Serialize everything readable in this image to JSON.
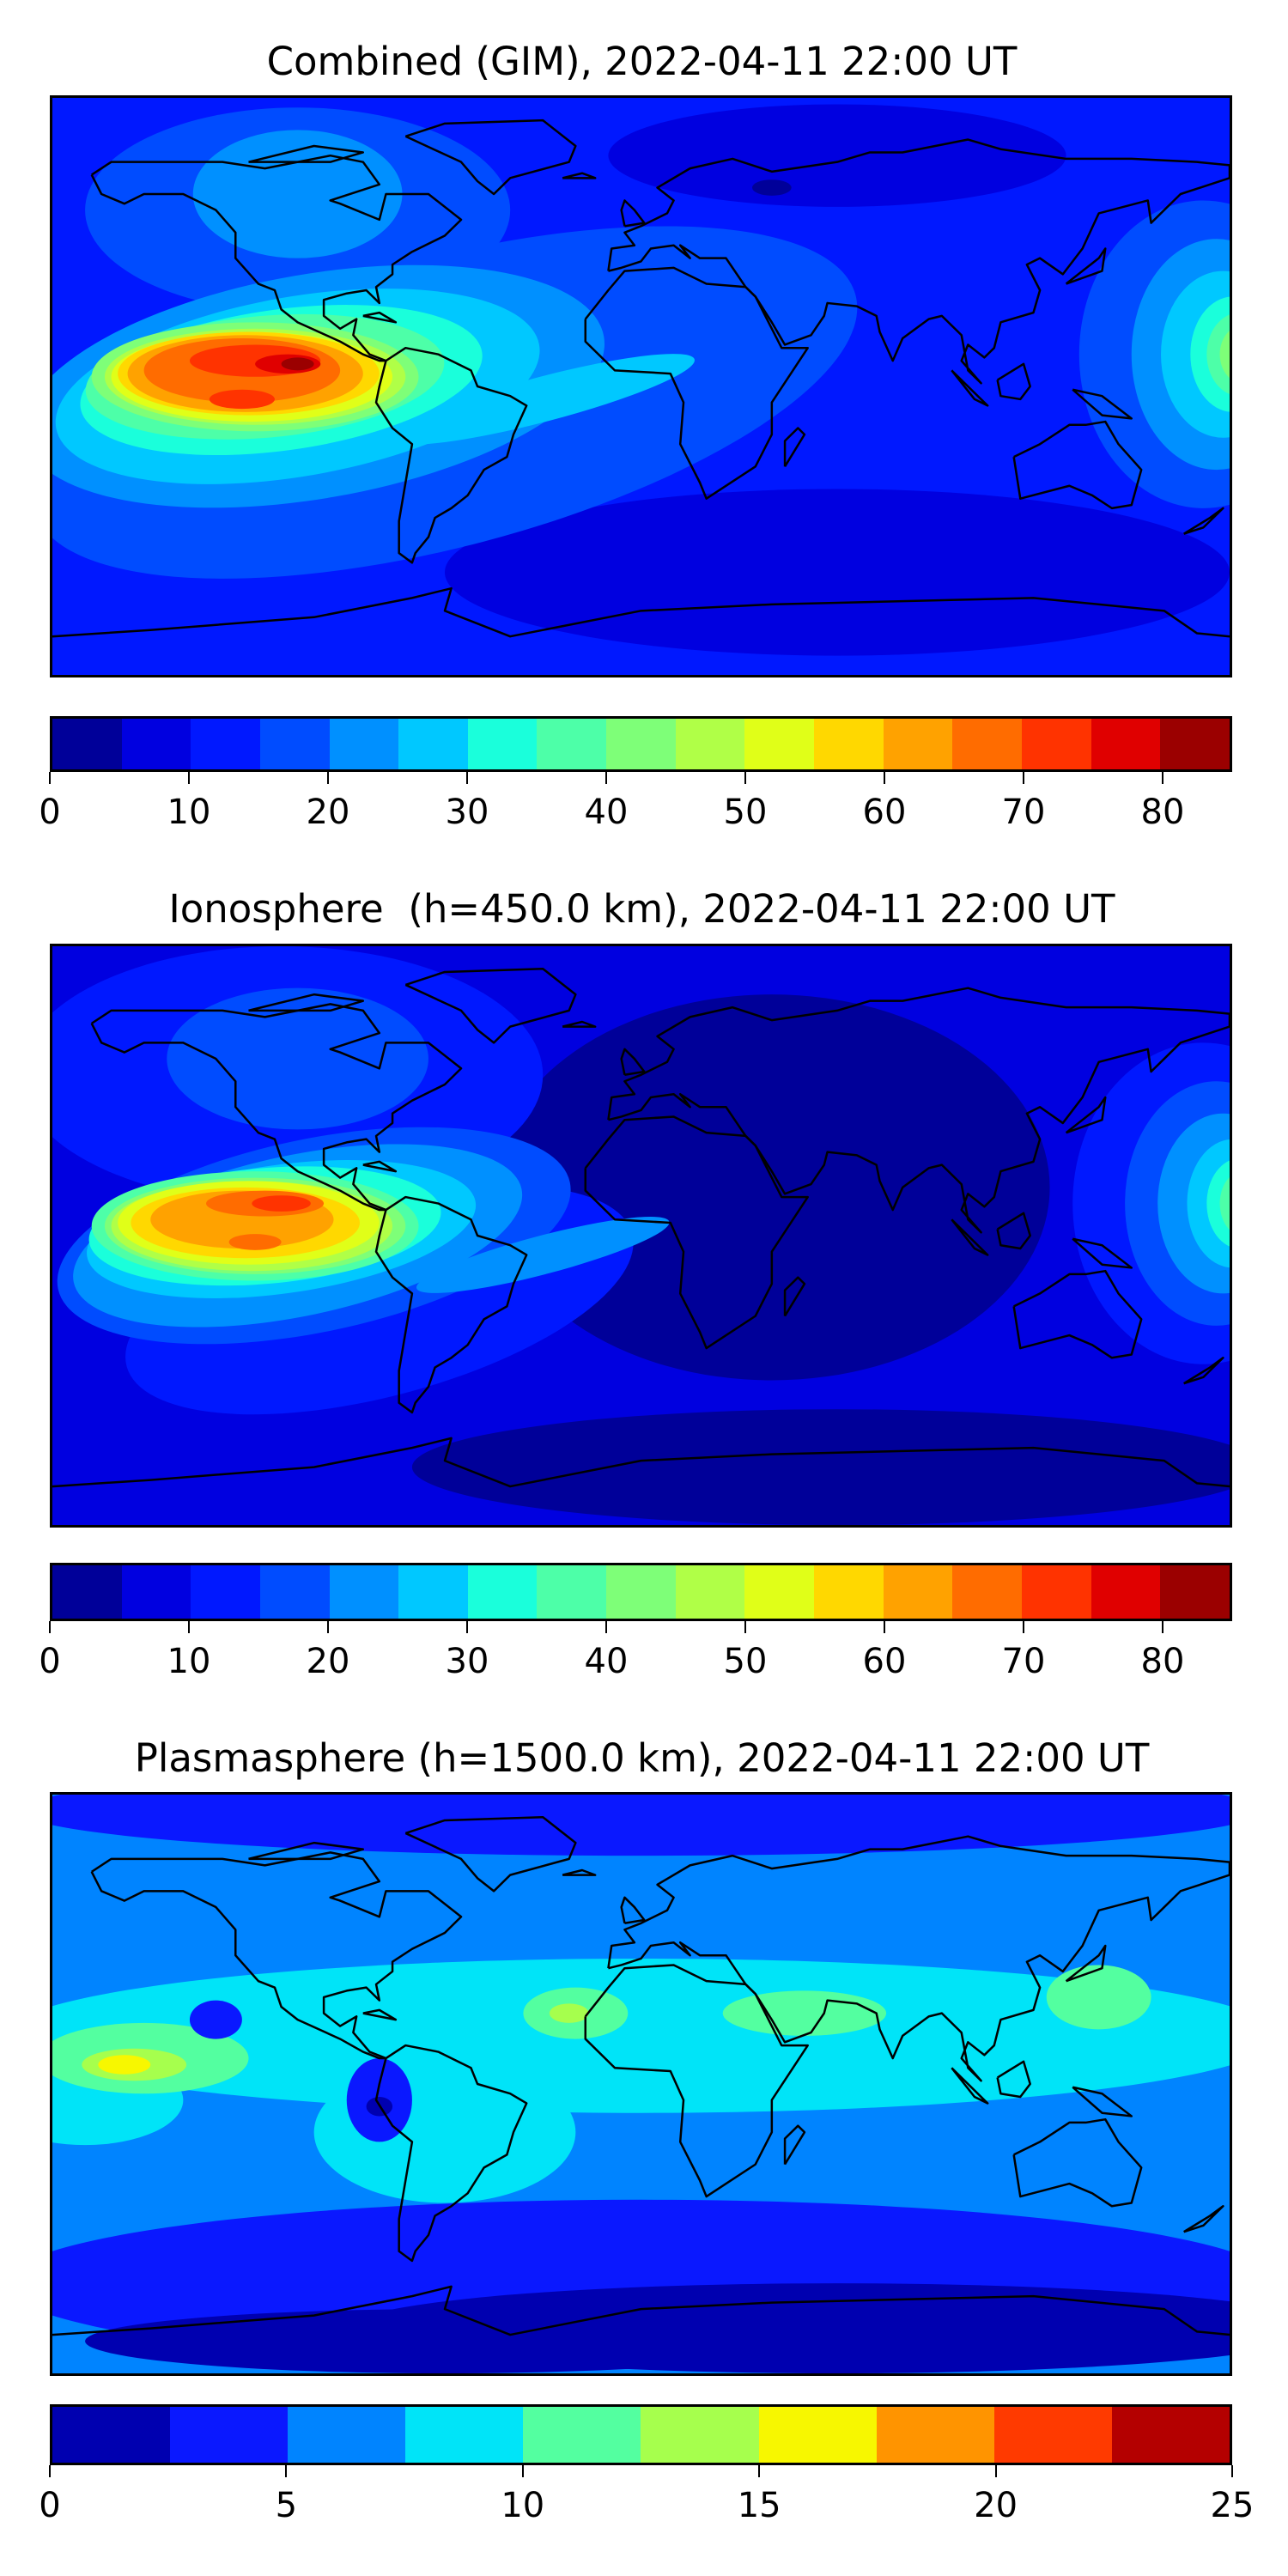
{
  "chart_data": [
    {
      "type": "heatmap",
      "title": "Combined (GIM), 2022-04-11 22:00 UT",
      "colorbar": {
        "range": [
          0,
          85
        ],
        "step": 5,
        "ticks": [
          0,
          10,
          20,
          30,
          40,
          50,
          60,
          70,
          80
        ],
        "tick_labels": [
          "0",
          "10",
          "20",
          "30",
          "40",
          "50",
          "60",
          "70",
          "80"
        ],
        "colors": [
          "#000099",
          "#0000e0",
          "#0018ff",
          "#004cff",
          "#0090ff",
          "#00c8ff",
          "#1affdb",
          "#4dffa8",
          "#7eff78",
          "#b0ff47",
          "#e0ff18",
          "#ffd800",
          "#ffa200",
          "#ff6c00",
          "#ff3300",
          "#e00000",
          "#9b0000"
        ]
      },
      "grid": false
    },
    {
      "type": "heatmap",
      "title": "Ionosphere  (h=450.0 km), 2022-04-11 22:00 UT",
      "colorbar": {
        "range": [
          0,
          85
        ],
        "step": 5,
        "ticks": [
          0,
          10,
          20,
          30,
          40,
          50,
          60,
          70,
          80
        ],
        "tick_labels": [
          "0",
          "10",
          "20",
          "30",
          "40",
          "50",
          "60",
          "70",
          "80"
        ],
        "colors": [
          "#000099",
          "#0000e0",
          "#0018ff",
          "#004cff",
          "#0090ff",
          "#00c8ff",
          "#1affdb",
          "#4dffa8",
          "#7eff78",
          "#b0ff47",
          "#e0ff18",
          "#ffd800",
          "#ffa200",
          "#ff6c00",
          "#ff3300",
          "#e00000",
          "#9b0000"
        ]
      },
      "grid": false
    },
    {
      "type": "heatmap",
      "title": "Plasmasphere (h=1500.0 km), 2022-04-11 22:00 UT",
      "colorbar": {
        "range": [
          0,
          25
        ],
        "step": 2.5,
        "ticks": [
          0,
          5,
          10,
          15,
          20,
          25
        ],
        "tick_labels": [
          "0",
          "5",
          "10",
          "15",
          "20",
          "25"
        ],
        "colors": [
          "#0000b0",
          "#0a18ff",
          "#0084ff",
          "#00e4f8",
          "#53ffa0",
          "#a6ff4d",
          "#f7f700",
          "#ff9400",
          "#ff3a00",
          "#b40000"
        ]
      },
      "grid": false
    }
  ]
}
